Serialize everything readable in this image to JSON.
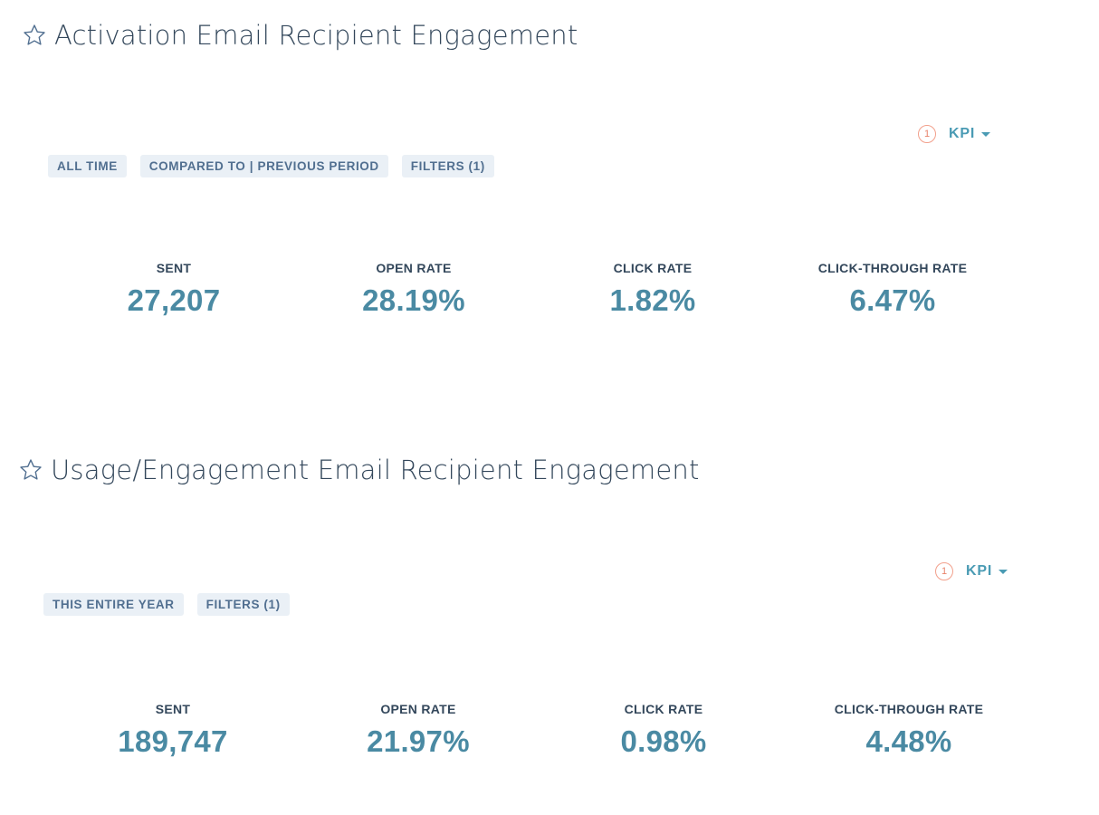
{
  "reports": [
    {
      "title": "Activation Email Recipient Engagement",
      "kpi": {
        "count": "1",
        "label": "KPI"
      },
      "filters": [
        "ALL TIME",
        "COMPARED TO | PREVIOUS PERIOD",
        "FILTERS (1)"
      ],
      "metrics": [
        {
          "label": "SENT",
          "value": "27,207"
        },
        {
          "label": "OPEN RATE",
          "value": "28.19%"
        },
        {
          "label": "CLICK RATE",
          "value": "1.82%"
        },
        {
          "label": "CLICK-THROUGH RATE",
          "value": "6.47%"
        }
      ]
    },
    {
      "title": "Usage/Engagement Email Recipient Engagement",
      "kpi": {
        "count": "1",
        "label": "KPI"
      },
      "filters": [
        "THIS ENTIRE YEAR",
        "FILTERS (1)"
      ],
      "metrics": [
        {
          "label": "SENT",
          "value": "189,747"
        },
        {
          "label": "OPEN RATE",
          "value": "21.97%"
        },
        {
          "label": "CLICK RATE",
          "value": "0.98%"
        },
        {
          "label": "CLICK-THROUGH RATE",
          "value": "4.48%"
        }
      ]
    }
  ],
  "colors": {
    "metric_value": "#4a8aa3",
    "kpi": "#4a9bb4",
    "kpi_badge": "#e8826a",
    "pill_bg": "#eaf0f6",
    "pill_text": "#516f90",
    "text": "#33475b"
  },
  "icons": {
    "favorite": "star-outline-icon",
    "dropdown": "caret-down-icon"
  }
}
